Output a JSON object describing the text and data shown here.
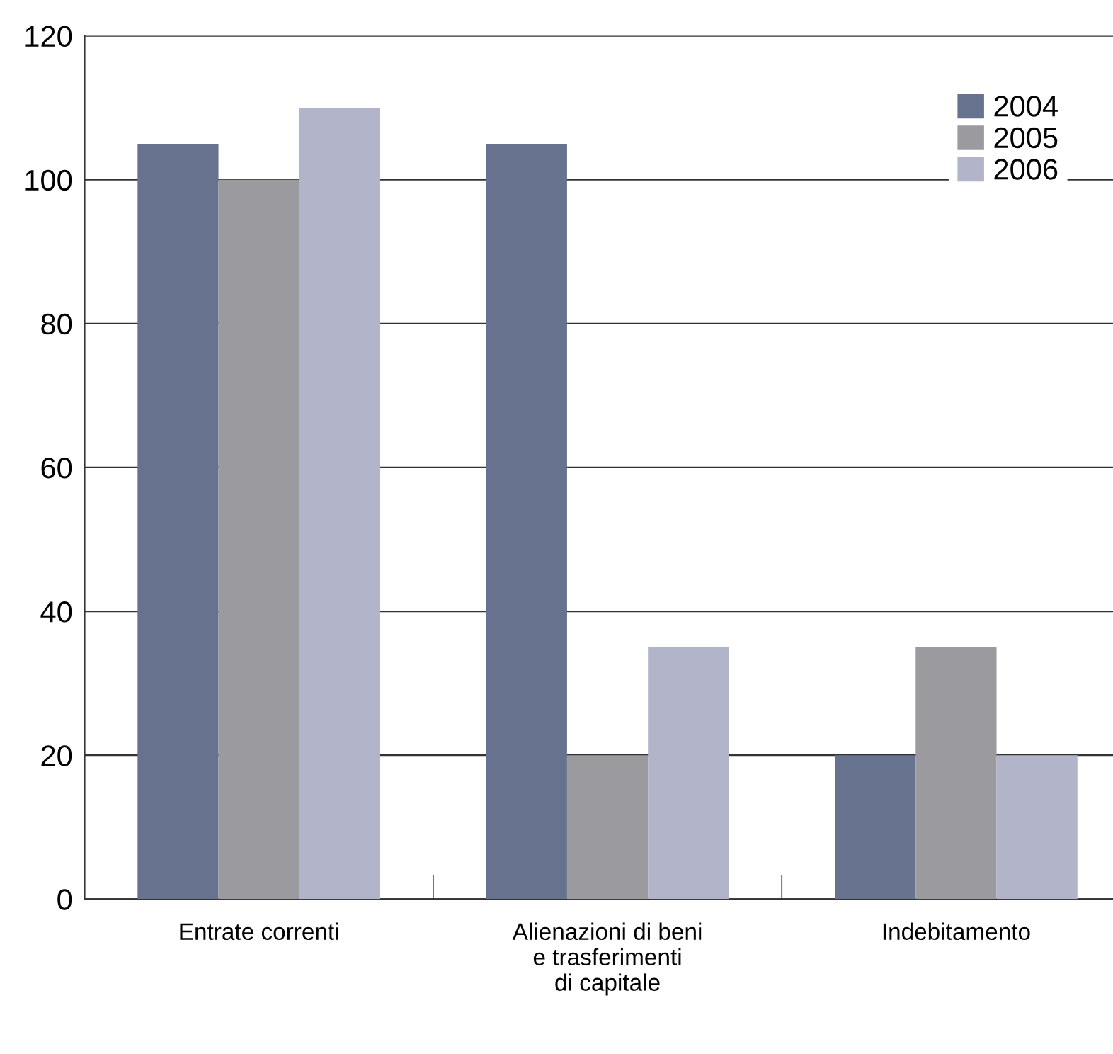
{
  "chart_data": {
    "type": "bar",
    "categories": [
      "Entrate correnti",
      "Alienazioni di beni\ne trasferimenti\ndi capitale",
      "Indebitamento"
    ],
    "series": [
      {
        "name": "2004",
        "color": "#67728f",
        "values": [
          105,
          105,
          20
        ]
      },
      {
        "name": "2005",
        "color": "#9a9a9f",
        "values": [
          100,
          20,
          35
        ]
      },
      {
        "name": "2006",
        "color": "#b2b5c9",
        "values": [
          110,
          35,
          20
        ]
      }
    ],
    "ylim": [
      0,
      120
    ],
    "yticks": [
      0,
      20,
      40,
      60,
      80,
      100,
      120
    ],
    "grid": "y",
    "legend": "top right"
  }
}
